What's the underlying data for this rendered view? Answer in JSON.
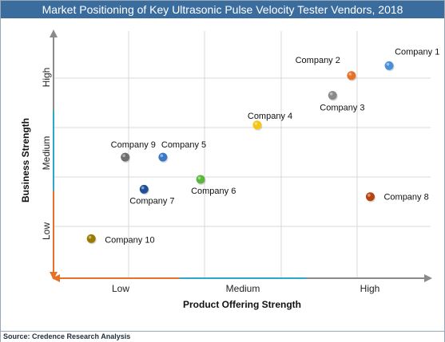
{
  "title": "Market Positioning of Key Ultrasonic Pulse Velocity Tester Vendors, 2018",
  "source": "Source: Credence Research Analysis",
  "chart_data": {
    "type": "scatter",
    "title": "Market Positioning of Key Ultrasonic Pulse Velocity Tester Vendors, 2018",
    "xlabel": "Product Offering Strength",
    "ylabel": "Business Strength",
    "xlim": [
      0,
      10
    ],
    "ylim": [
      0,
      10
    ],
    "x_ticks": [
      "Low",
      "Medium",
      "High"
    ],
    "y_ticks": [
      "Low",
      "Medium",
      "High"
    ],
    "grid": true,
    "points": [
      {
        "name": "Company 1",
        "x": 8.9,
        "y": 8.6,
        "color": "#4a90d9"
      },
      {
        "name": "Company 2",
        "x": 7.9,
        "y": 8.2,
        "color": "#e8712a"
      },
      {
        "name": "Company 3",
        "x": 7.4,
        "y": 7.4,
        "color": "#8a8a8a"
      },
      {
        "name": "Company 4",
        "x": 5.4,
        "y": 6.2,
        "color": "#f5c518"
      },
      {
        "name": "Company 5",
        "x": 2.9,
        "y": 4.9,
        "color": "#3a78c8"
      },
      {
        "name": "Company 6",
        "x": 3.9,
        "y": 4.0,
        "color": "#5cb83c"
      },
      {
        "name": "Company 7",
        "x": 2.4,
        "y": 3.6,
        "color": "#1f4f96"
      },
      {
        "name": "Company 8",
        "x": 8.4,
        "y": 3.3,
        "color": "#b5440f"
      },
      {
        "name": "Company 9",
        "x": 1.9,
        "y": 4.9,
        "color": "#6e6e6e"
      },
      {
        "name": "Company 10",
        "x": 1.0,
        "y": 1.6,
        "color": "#9a7a00"
      }
    ],
    "axis_colors": {
      "low": "#e8712a",
      "medium": "#2aa7c9",
      "high": "#8a8a8a"
    }
  }
}
